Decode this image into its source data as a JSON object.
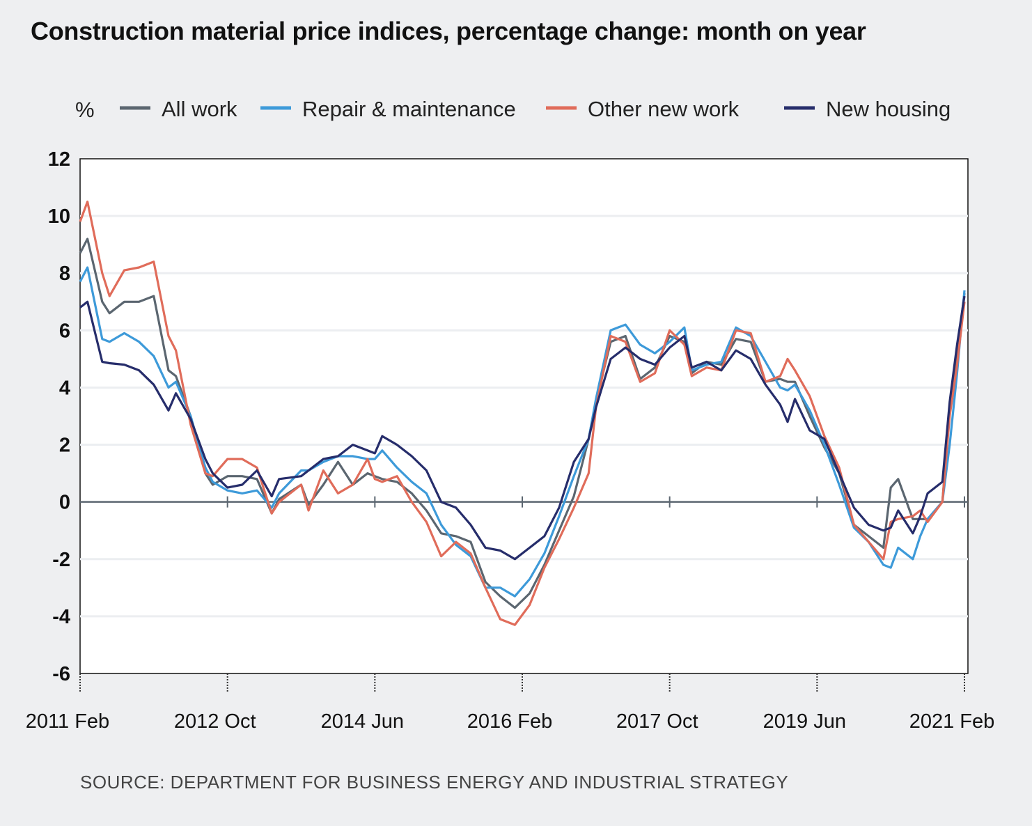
{
  "chart_data": {
    "type": "line",
    "title": "Construction material price indices, percentage change: month on year",
    "ylabel": "%",
    "xlabel": "",
    "ylim": [
      -6,
      12
    ],
    "yticks": [
      "12",
      "10",
      "8",
      "6",
      "4",
      "2",
      "0",
      "-2",
      "-4",
      "-6"
    ],
    "xlim": [
      "2011-02",
      "2021-02"
    ],
    "xticks": [
      {
        "date": "2011-02",
        "label": "2011 Feb"
      },
      {
        "date": "2012-10",
        "label": "2012 Oct"
      },
      {
        "date": "2014-06",
        "label": "2014 Jun"
      },
      {
        "date": "2016-02",
        "label": "2016 Feb"
      },
      {
        "date": "2017-10",
        "label": "2017 Oct"
      },
      {
        "date": "2019-06",
        "label": "2019 Jun"
      },
      {
        "date": "2021-02",
        "label": "2021 Feb"
      }
    ],
    "grid": true,
    "legend_position": "top",
    "x": [
      "2011-02",
      "2011-03",
      "2011-05",
      "2011-06",
      "2011-08",
      "2011-10",
      "2011-12",
      "2012-02",
      "2012-03",
      "2012-05",
      "2012-07",
      "2012-08",
      "2012-10",
      "2012-12",
      "2013-02",
      "2013-04",
      "2013-05",
      "2013-08",
      "2013-09",
      "2013-11",
      "2014-01",
      "2014-03",
      "2014-05",
      "2014-06",
      "2014-07",
      "2014-09",
      "2014-11",
      "2015-01",
      "2015-03",
      "2015-05",
      "2015-07",
      "2015-09",
      "2015-11",
      "2016-01",
      "2016-03",
      "2016-05",
      "2016-07",
      "2016-09",
      "2016-11",
      "2016-12",
      "2017-02",
      "2017-04",
      "2017-06",
      "2017-08",
      "2017-10",
      "2017-12",
      "2018-01",
      "2018-03",
      "2018-05",
      "2018-07",
      "2018-09",
      "2018-11",
      "2019-01",
      "2019-02",
      "2019-03",
      "2019-05",
      "2019-07",
      "2019-09",
      "2019-11",
      "2020-01",
      "2020-03",
      "2020-04",
      "2020-05",
      "2020-07",
      "2020-08",
      "2020-09",
      "2020-11",
      "2020-12",
      "2021-01",
      "2021-02"
    ],
    "series": [
      {
        "name": "All work",
        "color": "#5b6670",
        "values": [
          8.7,
          9.2,
          7.0,
          6.6,
          7.0,
          7.0,
          7.2,
          4.6,
          4.4,
          3.0,
          1.0,
          0.6,
          0.9,
          0.9,
          0.8,
          -0.4,
          0.1,
          0.6,
          -0.1,
          0.6,
          1.4,
          0.6,
          1.0,
          0.9,
          0.8,
          0.7,
          0.3,
          -0.3,
          -1.1,
          -1.2,
          -1.4,
          -2.8,
          -3.3,
          -3.7,
          -3.2,
          -2.2,
          -1.0,
          0.2,
          2.2,
          3.5,
          5.6,
          5.8,
          4.3,
          4.7,
          5.8,
          5.6,
          4.5,
          4.9,
          4.8,
          5.7,
          5.6,
          4.2,
          4.3,
          4.2,
          4.2,
          3.0,
          1.9,
          1.0,
          -0.8,
          -1.2,
          -1.6,
          0.5,
          0.8,
          -0.6,
          -0.6,
          -0.6,
          0.0,
          3.2,
          5.2,
          7.3
        ]
      },
      {
        "name": "Repair & maintenance",
        "color": "#3d9ad9",
        "values": [
          7.7,
          8.2,
          5.7,
          5.6,
          5.9,
          5.6,
          5.1,
          4.0,
          4.2,
          3.0,
          1.2,
          0.7,
          0.4,
          0.3,
          0.4,
          -0.2,
          0.3,
          1.1,
          1.1,
          1.4,
          1.6,
          1.6,
          1.5,
          1.5,
          1.8,
          1.2,
          0.7,
          0.3,
          -0.8,
          -1.5,
          -1.9,
          -3.0,
          -3.0,
          -3.3,
          -2.7,
          -1.8,
          -0.5,
          0.9,
          2.2,
          3.6,
          6.0,
          6.2,
          5.5,
          5.2,
          5.6,
          6.1,
          4.6,
          4.8,
          4.9,
          6.1,
          5.8,
          4.9,
          4.0,
          3.9,
          4.1,
          3.2,
          2.0,
          0.6,
          -0.9,
          -1.4,
          -2.2,
          -2.3,
          -1.6,
          -2.0,
          -1.2,
          -0.6,
          0.0,
          2.0,
          4.5,
          7.4
        ]
      },
      {
        "name": "Other new work",
        "color": "#e06c5a",
        "values": [
          9.8,
          10.5,
          8.0,
          7.2,
          8.1,
          8.2,
          8.4,
          5.8,
          5.3,
          2.7,
          1.0,
          0.9,
          1.5,
          1.5,
          1.2,
          -0.4,
          0.0,
          0.6,
          -0.3,
          1.1,
          0.3,
          0.6,
          1.5,
          0.8,
          0.7,
          0.9,
          0.0,
          -0.7,
          -1.9,
          -1.4,
          -1.8,
          -3.0,
          -4.1,
          -4.3,
          -3.6,
          -2.3,
          -1.3,
          -0.2,
          1.0,
          3.3,
          5.8,
          5.6,
          4.2,
          4.5,
          6.0,
          5.5,
          4.4,
          4.7,
          4.6,
          6.0,
          5.9,
          4.2,
          4.4,
          5.0,
          4.6,
          3.7,
          2.3,
          1.2,
          -0.8,
          -1.4,
          -2.0,
          -0.7,
          -0.6,
          -0.5,
          -0.3,
          -0.7,
          0.0,
          3.0,
          4.8,
          7.0
        ]
      },
      {
        "name": "New housing",
        "color": "#262d6b",
        "values": [
          6.8,
          7.0,
          4.9,
          4.85,
          4.8,
          4.6,
          4.1,
          3.2,
          3.8,
          2.9,
          1.5,
          1.0,
          0.5,
          0.6,
          1.1,
          0.2,
          0.8,
          0.9,
          1.1,
          1.5,
          1.6,
          2.0,
          1.8,
          1.7,
          2.3,
          2.0,
          1.6,
          1.1,
          0.0,
          -0.2,
          -0.8,
          -1.6,
          -1.7,
          -2.0,
          -1.6,
          -1.2,
          -0.2,
          1.4,
          2.2,
          3.3,
          5.0,
          5.4,
          5.0,
          4.8,
          5.4,
          5.8,
          4.7,
          4.9,
          4.6,
          5.3,
          5.0,
          4.1,
          3.4,
          2.8,
          3.6,
          2.5,
          2.2,
          1.0,
          -0.2,
          -0.8,
          -1.0,
          -0.9,
          -0.3,
          -1.1,
          -0.5,
          0.3,
          0.7,
          3.5,
          5.5,
          7.2
        ]
      }
    ],
    "source": "SOURCE: DEPARTMENT FOR BUSINESS ENERGY AND INDUSTRIAL STRATEGY"
  }
}
